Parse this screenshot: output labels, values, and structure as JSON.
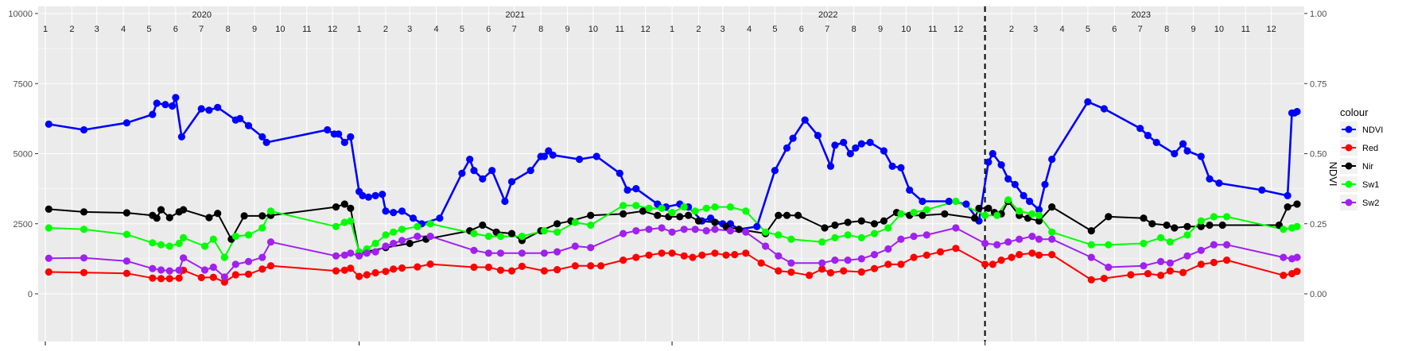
{
  "chart_data": {
    "type": "line",
    "title": "",
    "xlabel": "",
    "ylabel": "",
    "y2label": "NDVI",
    "ylim": [
      0,
      10000
    ],
    "y2lim": [
      0,
      1
    ],
    "yticks": [
      "0",
      "2500",
      "5000",
      "7500",
      "10000"
    ],
    "y2ticks": [
      "0.00",
      "0.25",
      "0.50",
      "0.75",
      "1.00"
    ],
    "xlim": [
      "2020-01-01",
      "2023-12-31"
    ],
    "years": [
      "2020",
      "2021",
      "2022",
      "2023"
    ],
    "months": [
      "1",
      "2",
      "3",
      "4",
      "5",
      "6",
      "7",
      "8",
      "9",
      "10",
      "11",
      "12"
    ],
    "grid": true,
    "vline": "2023-01-01",
    "legend": {
      "title": "colour",
      "placement": "right"
    },
    "series": [
      {
        "name": "NDVI",
        "color": "#0000FF",
        "axis": "right",
        "x": [
          "2020-01-05",
          "2020-02-15",
          "2020-04-05",
          "2020-05-05",
          "2020-05-10",
          "2020-05-20",
          "2020-05-28",
          "2020-06-01",
          "2020-06-08",
          "2020-07-01",
          "2020-07-10",
          "2020-07-20",
          "2020-08-10",
          "2020-08-15",
          "2020-08-25",
          "2020-09-10",
          "2020-09-15",
          "2020-11-25",
          "2020-12-03",
          "2020-12-08",
          "2020-12-15",
          "2020-12-22",
          "2021-01-01",
          "2021-01-05",
          "2021-01-12",
          "2021-01-20",
          "2021-01-28",
          "2021-02-01",
          "2021-02-10",
          "2021-02-20",
          "2021-03-05",
          "2021-03-15",
          "2021-04-05",
          "2021-05-01",
          "2021-05-10",
          "2021-05-15",
          "2021-05-25",
          "2021-06-05",
          "2021-06-20",
          "2021-06-28",
          "2021-07-20",
          "2021-08-01",
          "2021-08-05",
          "2021-08-10",
          "2021-08-15",
          "2021-09-15",
          "2021-10-05",
          "2021-11-01",
          "2021-11-10",
          "2021-11-20",
          "2021-12-15",
          "2021-12-25",
          "2022-01-10",
          "2022-01-20",
          "2022-02-05",
          "2022-02-15",
          "2022-03-01",
          "2022-03-10",
          "2022-03-20",
          "2022-04-10",
          "2022-05-01",
          "2022-05-15",
          "2022-05-22",
          "2022-06-05",
          "2022-06-20",
          "2022-07-05",
          "2022-07-10",
          "2022-07-20",
          "2022-07-28",
          "2022-08-03",
          "2022-08-10",
          "2022-08-20",
          "2022-09-05",
          "2022-09-15",
          "2022-09-25",
          "2022-10-05",
          "2022-10-20",
          "2022-11-20",
          "2022-12-10",
          "2022-12-25",
          "2023-01-05",
          "2023-01-10",
          "2023-01-20",
          "2023-01-28",
          "2023-02-05",
          "2023-02-15",
          "2023-02-22",
          "2023-03-05",
          "2023-03-12",
          "2023-03-20",
          "2023-05-01",
          "2023-05-20",
          "2023-07-01",
          "2023-07-10",
          "2023-07-20",
          "2023-08-10",
          "2023-08-20",
          "2023-08-25",
          "2023-09-10",
          "2023-09-20",
          "2023-10-01",
          "2023-11-20",
          "2023-12-20",
          "2023-12-25",
          "2023-12-28",
          "2023-12-31"
        ],
        "values": [
          0.605,
          0.585,
          0.61,
          0.64,
          0.68,
          0.675,
          0.67,
          0.7,
          0.56,
          0.66,
          0.655,
          0.665,
          0.62,
          0.625,
          0.6,
          0.56,
          0.54,
          0.585,
          0.57,
          0.57,
          0.54,
          0.56,
          0.365,
          0.35,
          0.345,
          0.35,
          0.355,
          0.295,
          0.29,
          0.295,
          0.27,
          0.25,
          0.27,
          0.43,
          0.48,
          0.44,
          0.41,
          0.44,
          0.33,
          0.4,
          0.44,
          0.49,
          0.49,
          0.51,
          0.495,
          0.48,
          0.49,
          0.43,
          0.37,
          0.375,
          0.32,
          0.31,
          0.32,
          0.31,
          0.26,
          0.27,
          0.25,
          0.25,
          0.23,
          0.24,
          0.44,
          0.52,
          0.555,
          0.62,
          0.565,
          0.455,
          0.53,
          0.54,
          0.5,
          0.52,
          0.535,
          0.54,
          0.51,
          0.455,
          0.45,
          0.37,
          0.33,
          0.33,
          0.32,
          0.26,
          0.47,
          0.5,
          0.46,
          0.41,
          0.39,
          0.35,
          0.33,
          0.3,
          0.39,
          0.48,
          0.685,
          0.66,
          0.59,
          0.565,
          0.54,
          0.5,
          0.535,
          0.51,
          0.49,
          0.41,
          0.395,
          0.37,
          0.35,
          0.645,
          0.645,
          0.65
        ]
      },
      {
        "name": "Red",
        "color": "#FF0000",
        "axis": "left",
        "x": [
          "2020-01-05",
          "2020-02-15",
          "2020-04-05",
          "2020-05-05",
          "2020-05-15",
          "2020-05-25",
          "2020-06-05",
          "2020-06-10",
          "2020-07-01",
          "2020-07-15",
          "2020-07-28",
          "2020-08-10",
          "2020-08-25",
          "2020-09-10",
          "2020-09-20",
          "2020-12-05",
          "2020-12-15",
          "2020-12-22",
          "2021-01-01",
          "2021-01-10",
          "2021-01-20",
          "2021-02-01",
          "2021-02-10",
          "2021-02-20",
          "2021-03-10",
          "2021-03-25",
          "2021-05-15",
          "2021-06-01",
          "2021-06-15",
          "2021-06-28",
          "2021-07-10",
          "2021-08-05",
          "2021-08-20",
          "2021-09-10",
          "2021-09-28",
          "2021-10-10",
          "2021-11-05",
          "2021-11-20",
          "2021-12-05",
          "2021-12-20",
          "2022-01-01",
          "2022-01-15",
          "2022-01-25",
          "2022-02-05",
          "2022-02-20",
          "2022-03-05",
          "2022-03-15",
          "2022-03-28",
          "2022-04-15",
          "2022-05-05",
          "2022-05-20",
          "2022-06-10",
          "2022-06-25",
          "2022-07-05",
          "2022-07-20",
          "2022-08-10",
          "2022-08-25",
          "2022-09-10",
          "2022-09-25",
          "2022-10-10",
          "2022-10-25",
          "2022-11-10",
          "2022-11-28",
          "2023-01-01",
          "2023-01-10",
          "2023-01-20",
          "2023-02-01",
          "2023-02-10",
          "2023-02-25",
          "2023-03-05",
          "2023-03-20",
          "2023-05-05",
          "2023-05-20",
          "2023-06-20",
          "2023-07-10",
          "2023-07-25",
          "2023-08-05",
          "2023-08-20",
          "2023-09-10",
          "2023-09-25",
          "2023-10-10",
          "2023-12-15",
          "2023-12-25",
          "2023-12-31"
        ],
        "values": [
          780,
          760,
          730,
          560,
          540,
          540,
          560,
          840,
          580,
          590,
          420,
          680,
          700,
          880,
          1000,
          820,
          840,
          910,
          620,
          680,
          750,
          800,
          880,
          920,
          960,
          1060,
          950,
          950,
          840,
          820,
          980,
          820,
          860,
          1000,
          1000,
          1000,
          1200,
          1300,
          1380,
          1450,
          1450,
          1350,
          1300,
          1380,
          1450,
          1380,
          1400,
          1450,
          1100,
          820,
          770,
          660,
          880,
          750,
          820,
          780,
          900,
          1050,
          1050,
          1300,
          1380,
          1500,
          1620,
          1050,
          1050,
          1200,
          1300,
          1400,
          1450,
          1380,
          1400,
          500,
          550,
          680,
          720,
          660,
          820,
          760,
          1050,
          1120,
          1200,
          660,
          720,
          800
        ]
      },
      {
        "name": "Nir",
        "color": "#000000",
        "axis": "left",
        "x": [
          "2020-01-05",
          "2020-02-15",
          "2020-04-05",
          "2020-05-05",
          "2020-05-10",
          "2020-05-15",
          "2020-05-25",
          "2020-06-05",
          "2020-06-10",
          "2020-07-10",
          "2020-07-20",
          "2020-08-05",
          "2020-08-20",
          "2020-09-10",
          "2020-09-20",
          "2020-12-05",
          "2020-12-15",
          "2020-12-22",
          "2021-01-01",
          "2021-02-01",
          "2021-03-01",
          "2021-03-20",
          "2021-05-10",
          "2021-05-25",
          "2021-06-10",
          "2021-06-28",
          "2021-07-10",
          "2021-08-01",
          "2021-08-20",
          "2021-09-05",
          "2021-09-28",
          "2021-11-05",
          "2021-11-28",
          "2021-12-15",
          "2021-12-28",
          "2022-01-10",
          "2022-01-20",
          "2022-02-01",
          "2022-02-20",
          "2022-03-05",
          "2022-03-20",
          "2022-04-20",
          "2022-05-05",
          "2022-05-15",
          "2022-05-28",
          "2022-06-28",
          "2022-07-10",
          "2022-07-25",
          "2022-08-10",
          "2022-08-25",
          "2022-09-05",
          "2022-09-20",
          "2022-10-05",
          "2022-10-20",
          "2022-11-15",
          "2022-12-20",
          "2022-12-25",
          "2023-01-05",
          "2023-01-12",
          "2023-01-20",
          "2023-01-28",
          "2023-02-10",
          "2023-02-20",
          "2023-03-05",
          "2023-03-20",
          "2023-05-05",
          "2023-05-25",
          "2023-07-05",
          "2023-07-15",
          "2023-08-01",
          "2023-08-10",
          "2023-08-25",
          "2023-09-10",
          "2023-09-20",
          "2023-10-05",
          "2023-12-10",
          "2023-12-20",
          "2023-12-31"
        ],
        "values": [
          3020,
          2920,
          2890,
          2800,
          2700,
          3000,
          2720,
          2920,
          3000,
          2720,
          2870,
          1950,
          2780,
          2780,
          2800,
          3100,
          3200,
          3050,
          1450,
          1650,
          1800,
          1950,
          2250,
          2450,
          2200,
          2150,
          1900,
          2250,
          2500,
          2600,
          2800,
          2850,
          2950,
          2800,
          2750,
          2750,
          2800,
          2600,
          2550,
          2400,
          2300,
          2150,
          2800,
          2800,
          2800,
          2350,
          2450,
          2550,
          2600,
          2500,
          2600,
          2900,
          2800,
          2800,
          2850,
          2700,
          3050,
          3050,
          2900,
          2850,
          3300,
          2800,
          2700,
          2600,
          3100,
          2250,
          2750,
          2700,
          2500,
          2450,
          2350,
          2400,
          2400,
          2450,
          2450,
          2450,
          3100,
          3200
        ]
      },
      {
        "name": "Sw1",
        "color": "#00FF00",
        "axis": "left",
        "x": [
          "2020-01-05",
          "2020-02-15",
          "2020-04-05",
          "2020-05-05",
          "2020-05-15",
          "2020-05-25",
          "2020-06-05",
          "2020-06-10",
          "2020-07-05",
          "2020-07-15",
          "2020-07-28",
          "2020-08-10",
          "2020-08-25",
          "2020-09-10",
          "2020-09-20",
          "2020-12-05",
          "2020-12-15",
          "2020-12-22",
          "2021-01-01",
          "2021-01-10",
          "2021-01-20",
          "2021-02-01",
          "2021-02-10",
          "2021-02-20",
          "2021-03-10",
          "2021-03-25",
          "2021-05-15",
          "2021-06-01",
          "2021-06-15",
          "2021-07-10",
          "2021-08-05",
          "2021-08-20",
          "2021-09-10",
          "2021-09-28",
          "2021-11-05",
          "2021-11-20",
          "2021-12-05",
          "2021-12-20",
          "2022-01-01",
          "2022-01-15",
          "2022-01-28",
          "2022-02-10",
          "2022-02-20",
          "2022-03-10",
          "2022-03-28",
          "2022-04-20",
          "2022-05-05",
          "2022-05-20",
          "2022-06-25",
          "2022-07-10",
          "2022-07-25",
          "2022-08-10",
          "2022-08-25",
          "2022-09-10",
          "2022-09-25",
          "2022-10-10",
          "2022-10-25",
          "2022-11-28",
          "2023-01-01",
          "2023-01-15",
          "2023-01-28",
          "2023-02-10",
          "2023-02-25",
          "2023-03-05",
          "2023-03-20",
          "2023-05-05",
          "2023-05-25",
          "2023-07-05",
          "2023-07-25",
          "2023-08-05",
          "2023-08-25",
          "2023-09-10",
          "2023-09-25",
          "2023-10-10",
          "2023-12-15",
          "2023-12-25",
          "2023-12-31"
        ],
        "values": [
          2350,
          2300,
          2120,
          1820,
          1750,
          1700,
          1800,
          2000,
          1700,
          1950,
          1300,
          2050,
          2100,
          2350,
          2950,
          2400,
          2550,
          2600,
          1500,
          1600,
          1800,
          2100,
          2200,
          2300,
          2400,
          2500,
          2150,
          2050,
          2050,
          2050,
          2250,
          2200,
          2550,
          2450,
          3150,
          3150,
          3050,
          3050,
          2900,
          3100,
          2950,
          3050,
          3100,
          3100,
          2950,
          2200,
          2100,
          1950,
          1850,
          2000,
          2100,
          2000,
          2150,
          2350,
          2850,
          2900,
          3000,
          3300,
          2800,
          2800,
          3350,
          2950,
          2850,
          2800,
          2200,
          1750,
          1750,
          1800,
          2000,
          1850,
          2100,
          2600,
          2750,
          2750,
          2300,
          2350,
          2400
        ]
      },
      {
        "name": "Sw2",
        "color": "#A020F0",
        "axis": "left",
        "x": [
          "2020-01-05",
          "2020-02-15",
          "2020-04-05",
          "2020-05-05",
          "2020-05-15",
          "2020-05-25",
          "2020-06-05",
          "2020-06-10",
          "2020-07-05",
          "2020-07-15",
          "2020-07-28",
          "2020-08-10",
          "2020-08-25",
          "2020-09-10",
          "2020-09-20",
          "2020-12-05",
          "2020-12-15",
          "2020-12-22",
          "2021-01-01",
          "2021-01-10",
          "2021-01-20",
          "2021-02-01",
          "2021-02-10",
          "2021-02-20",
          "2021-03-10",
          "2021-03-25",
          "2021-05-15",
          "2021-06-01",
          "2021-06-15",
          "2021-07-10",
          "2021-08-05",
          "2021-08-20",
          "2021-09-10",
          "2021-09-28",
          "2021-11-05",
          "2021-11-20",
          "2021-12-05",
          "2021-12-20",
          "2022-01-01",
          "2022-01-15",
          "2022-01-28",
          "2022-02-10",
          "2022-02-20",
          "2022-03-10",
          "2022-03-28",
          "2022-04-20",
          "2022-05-05",
          "2022-05-20",
          "2022-06-25",
          "2022-07-10",
          "2022-07-25",
          "2022-08-10",
          "2022-08-25",
          "2022-09-10",
          "2022-09-25",
          "2022-10-10",
          "2022-10-25",
          "2022-11-28",
          "2023-01-01",
          "2023-01-15",
          "2023-01-28",
          "2023-02-10",
          "2023-02-25",
          "2023-03-05",
          "2023-03-20",
          "2023-05-05",
          "2023-05-25",
          "2023-07-05",
          "2023-07-25",
          "2023-08-05",
          "2023-08-25",
          "2023-09-10",
          "2023-09-25",
          "2023-10-10",
          "2023-12-15",
          "2023-12-25",
          "2023-12-31"
        ],
        "values": [
          1270,
          1280,
          1170,
          900,
          850,
          820,
          840,
          1280,
          850,
          950,
          600,
          1050,
          1150,
          1300,
          1850,
          1350,
          1380,
          1450,
          1350,
          1450,
          1500,
          1700,
          1800,
          1900,
          2050,
          2050,
          1550,
          1450,
          1450,
          1450,
          1450,
          1500,
          1700,
          1650,
          2150,
          2250,
          2300,
          2350,
          2200,
          2300,
          2300,
          2250,
          2300,
          2250,
          2200,
          1700,
          1350,
          1100,
          1100,
          1200,
          1200,
          1250,
          1400,
          1600,
          1950,
          2050,
          2100,
          2350,
          1800,
          1750,
          1850,
          1950,
          2050,
          1950,
          1950,
          1300,
          950,
          1000,
          1150,
          1100,
          1350,
          1550,
          1750,
          1750,
          1300,
          1250,
          1300
        ]
      }
    ]
  }
}
